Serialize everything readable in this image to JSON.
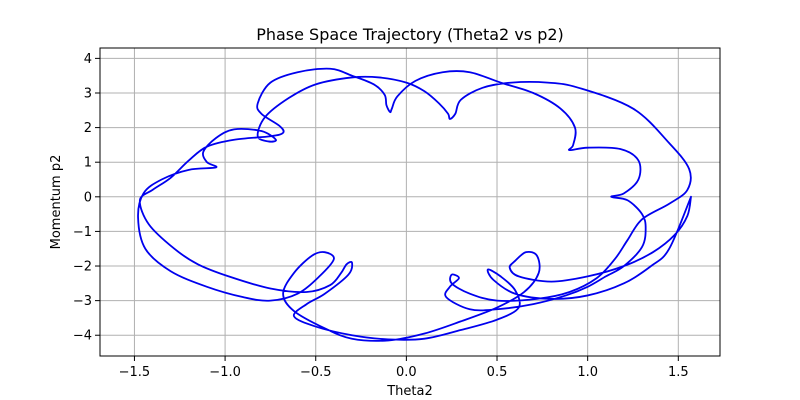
{
  "chart_data": {
    "type": "line",
    "title": "Phase Space Trajectory (Theta2 vs p2)",
    "xlabel": "Theta2",
    "ylabel": "Momentum p2",
    "xlim": [
      -1.69,
      1.73
    ],
    "ylim": [
      -4.6,
      4.3
    ],
    "xticks": [
      -1.5,
      -1.0,
      -0.5,
      0.0,
      0.5,
      1.0,
      1.5
    ],
    "xtick_labels": [
      "−1.5",
      "−1.0",
      "−0.5",
      "0.0",
      "0.5",
      "1.0",
      "1.5"
    ],
    "yticks": [
      -4,
      -3,
      -2,
      -1,
      0,
      1,
      2,
      3,
      4
    ],
    "ytick_labels": [
      "−4",
      "−3",
      "−2",
      "−1",
      "0",
      "1",
      "2",
      "3",
      "4"
    ],
    "grid": true,
    "colors": {
      "line": "#0000ee",
      "grid": "#b0b0b0",
      "axes": "#000000"
    },
    "series": [
      {
        "values": [
          [
            1.57,
            0.0
          ],
          [
            1.55,
            -0.55
          ],
          [
            1.48,
            -1.1
          ],
          [
            1.36,
            -1.6
          ],
          [
            1.2,
            -2.0
          ],
          [
            1.0,
            -2.3
          ],
          [
            0.8,
            -2.45
          ],
          [
            0.62,
            -2.3
          ],
          [
            0.57,
            -2.05
          ],
          [
            0.6,
            -1.85
          ],
          [
            0.66,
            -1.6
          ],
          [
            0.72,
            -1.7
          ],
          [
            0.73,
            -2.2
          ],
          [
            0.65,
            -2.75
          ],
          [
            0.5,
            -3.2
          ],
          [
            0.3,
            -3.6
          ],
          [
            0.1,
            -3.95
          ],
          [
            -0.1,
            -4.15
          ],
          [
            -0.3,
            -4.1
          ],
          [
            -0.45,
            -3.8
          ],
          [
            -0.62,
            -3.3
          ],
          [
            -0.68,
            -2.8
          ],
          [
            -0.62,
            -2.2
          ],
          [
            -0.52,
            -1.7
          ],
          [
            -0.45,
            -1.6
          ],
          [
            -0.4,
            -1.8
          ],
          [
            -0.48,
            -2.3
          ],
          [
            -0.6,
            -2.8
          ],
          [
            -0.75,
            -3.0
          ],
          [
            -0.9,
            -2.9
          ],
          [
            -1.1,
            -2.6
          ],
          [
            -1.3,
            -2.15
          ],
          [
            -1.44,
            -1.5
          ],
          [
            -1.48,
            -0.6
          ],
          [
            -1.45,
            0.1
          ],
          [
            -1.35,
            0.5
          ],
          [
            -1.2,
            0.78
          ],
          [
            -1.05,
            0.85
          ],
          [
            -1.1,
            1.0
          ],
          [
            -1.12,
            1.3
          ],
          [
            -1.05,
            1.7
          ],
          [
            -0.95,
            1.95
          ],
          [
            -0.8,
            1.9
          ],
          [
            -0.72,
            1.65
          ],
          [
            -0.76,
            1.6
          ],
          [
            -0.82,
            1.75
          ],
          [
            -0.78,
            2.3
          ],
          [
            -0.65,
            2.85
          ],
          [
            -0.5,
            3.25
          ],
          [
            -0.3,
            3.45
          ],
          [
            -0.15,
            3.45
          ],
          [
            0.0,
            3.3
          ],
          [
            0.1,
            3.05
          ],
          [
            0.18,
            2.7
          ],
          [
            0.23,
            2.4
          ],
          [
            0.24,
            2.25
          ],
          [
            0.27,
            2.4
          ],
          [
            0.3,
            2.8
          ],
          [
            0.42,
            3.15
          ],
          [
            0.58,
            3.3
          ],
          [
            0.78,
            3.3
          ],
          [
            0.95,
            3.15
          ],
          [
            1.25,
            2.55
          ],
          [
            1.45,
            1.55
          ],
          [
            1.56,
            0.8
          ],
          [
            1.55,
            0.2
          ],
          [
            1.45,
            -0.2
          ],
          [
            1.3,
            -0.65
          ],
          [
            1.22,
            -1.25
          ],
          [
            1.15,
            -1.8
          ],
          [
            1.05,
            -2.35
          ],
          [
            0.9,
            -2.75
          ],
          [
            0.72,
            -2.95
          ],
          [
            0.5,
            -3.0
          ],
          [
            0.35,
            -2.8
          ],
          [
            0.25,
            -2.5
          ],
          [
            0.25,
            -2.25
          ],
          [
            0.29,
            -2.35
          ],
          [
            0.24,
            -2.6
          ],
          [
            0.22,
            -2.9
          ],
          [
            0.35,
            -3.25
          ],
          [
            0.5,
            -3.25
          ],
          [
            0.7,
            -3.1
          ],
          [
            0.88,
            -2.85
          ],
          [
            1.0,
            -2.6
          ],
          [
            1.1,
            -2.3
          ],
          [
            1.2,
            -2.0
          ],
          [
            1.3,
            -1.45
          ],
          [
            1.32,
            -0.9
          ],
          [
            1.3,
            -0.5
          ],
          [
            1.22,
            -0.1
          ],
          [
            1.13,
            0.0
          ],
          [
            1.2,
            0.1
          ],
          [
            1.28,
            0.5
          ],
          [
            1.28,
            1.05
          ],
          [
            1.18,
            1.38
          ],
          [
            1.0,
            1.42
          ],
          [
            0.9,
            1.35
          ],
          [
            0.92,
            1.5
          ],
          [
            0.93,
            2.0
          ],
          [
            0.85,
            2.55
          ],
          [
            0.7,
            3.0
          ],
          [
            0.52,
            3.3
          ],
          [
            0.35,
            3.6
          ],
          [
            0.2,
            3.6
          ],
          [
            0.05,
            3.35
          ],
          [
            -0.05,
            2.9
          ],
          [
            -0.08,
            2.55
          ],
          [
            -0.09,
            2.45
          ],
          [
            -0.11,
            2.65
          ],
          [
            -0.12,
            2.95
          ],
          [
            -0.18,
            3.25
          ],
          [
            -0.3,
            3.5
          ],
          [
            -0.42,
            3.7
          ],
          [
            -0.6,
            3.6
          ],
          [
            -0.75,
            3.3
          ],
          [
            -0.82,
            2.7
          ],
          [
            -0.8,
            2.4
          ],
          [
            -0.7,
            2.05
          ],
          [
            -0.68,
            1.85
          ],
          [
            -0.75,
            1.75
          ],
          [
            -0.95,
            1.65
          ],
          [
            -1.1,
            1.45
          ],
          [
            -1.2,
            1.05
          ],
          [
            -1.3,
            0.55
          ],
          [
            -1.4,
            0.2
          ],
          [
            -1.47,
            -0.1
          ],
          [
            -1.42,
            -0.8
          ],
          [
            -1.28,
            -1.5
          ],
          [
            -1.15,
            -1.95
          ],
          [
            -0.98,
            -2.3
          ],
          [
            -0.75,
            -2.65
          ],
          [
            -0.55,
            -2.75
          ],
          [
            -0.42,
            -2.55
          ],
          [
            -0.36,
            -2.2
          ],
          [
            -0.33,
            -1.95
          ],
          [
            -0.3,
            -1.9
          ],
          [
            -0.32,
            -2.25
          ],
          [
            -0.45,
            -2.8
          ],
          [
            -0.55,
            -3.1
          ],
          [
            -0.62,
            -3.45
          ],
          [
            -0.5,
            -3.75
          ],
          [
            -0.3,
            -4.0
          ],
          [
            -0.1,
            -4.12
          ],
          [
            0.1,
            -4.1
          ],
          [
            0.3,
            -3.85
          ],
          [
            0.5,
            -3.55
          ],
          [
            0.62,
            -3.2
          ],
          [
            0.6,
            -2.7
          ],
          [
            0.52,
            -2.3
          ],
          [
            0.45,
            -2.1
          ],
          [
            0.48,
            -2.4
          ],
          [
            0.6,
            -2.8
          ],
          [
            0.8,
            -2.95
          ],
          [
            1.0,
            -2.85
          ],
          [
            1.2,
            -2.5
          ],
          [
            1.35,
            -2.0
          ],
          [
            1.45,
            -1.5
          ],
          [
            1.57,
            0.0
          ]
        ]
      }
    ]
  }
}
